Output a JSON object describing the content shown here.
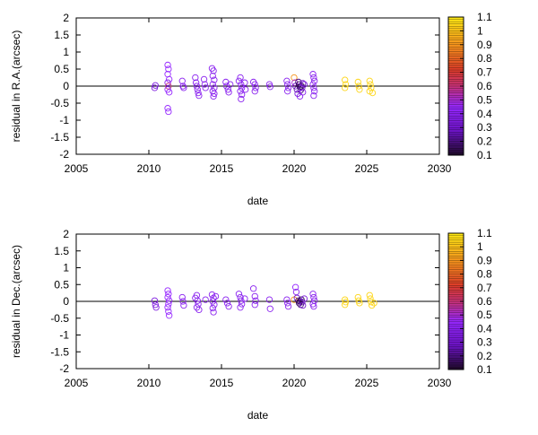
{
  "chart_data": [
    {
      "type": "scatter",
      "title": "",
      "xlabel": "date",
      "ylabel": "residual in R.A.(arcsec)",
      "xlim": [
        2005,
        2030
      ],
      "ylim": [
        -2,
        2
      ],
      "xticks": [
        "2005",
        "2010",
        "2015",
        "2020",
        "2025",
        "2030"
      ],
      "yticks": [
        "-2",
        "-1.5",
        "-1",
        "-0.5",
        "0",
        "0.5",
        "1",
        "1.5",
        "2"
      ],
      "zero_line": true,
      "grid": false,
      "marker": "open-circle",
      "colorbar": {
        "range": [
          0.1,
          1.1
        ],
        "ticks": [
          "0.1",
          "0.2",
          "0.3",
          "0.4",
          "0.5",
          "0.6",
          "0.7",
          "0.8",
          "0.9",
          "1",
          "1.1"
        ],
        "colormap": "black-purple-red-orange-yellow"
      },
      "points": [
        {
          "x": 2010.4,
          "y": -0.05,
          "c": 0.35
        },
        {
          "x": 2010.45,
          "y": 0.02,
          "c": 0.35
        },
        {
          "x": 2011.3,
          "y": 0.62,
          "c": 0.45
        },
        {
          "x": 2011.35,
          "y": 0.5,
          "c": 0.45
        },
        {
          "x": 2011.3,
          "y": 0.35,
          "c": 0.45
        },
        {
          "x": 2011.4,
          "y": 0.2,
          "c": 0.45
        },
        {
          "x": 2011.3,
          "y": 0.1,
          "c": 0.4
        },
        {
          "x": 2011.35,
          "y": 0.0,
          "c": 0.6
        },
        {
          "x": 2011.3,
          "y": -0.1,
          "c": 0.45
        },
        {
          "x": 2011.4,
          "y": -0.18,
          "c": 0.45
        },
        {
          "x": 2011.3,
          "y": -0.65,
          "c": 0.45
        },
        {
          "x": 2011.35,
          "y": -0.75,
          "c": 0.45
        },
        {
          "x": 2012.3,
          "y": 0.15,
          "c": 0.4
        },
        {
          "x": 2012.35,
          "y": 0.0,
          "c": 0.4
        },
        {
          "x": 2012.4,
          "y": -0.05,
          "c": 0.4
        },
        {
          "x": 2013.2,
          "y": 0.25,
          "c": 0.4
        },
        {
          "x": 2013.25,
          "y": 0.1,
          "c": 0.4
        },
        {
          "x": 2013.3,
          "y": 0.0,
          "c": 0.4
        },
        {
          "x": 2013.35,
          "y": -0.1,
          "c": 0.4
        },
        {
          "x": 2013.4,
          "y": -0.2,
          "c": 0.4
        },
        {
          "x": 2013.45,
          "y": -0.28,
          "c": 0.4
        },
        {
          "x": 2013.8,
          "y": 0.2,
          "c": 0.4
        },
        {
          "x": 2013.85,
          "y": 0.05,
          "c": 0.4
        },
        {
          "x": 2013.9,
          "y": -0.05,
          "c": 0.4
        },
        {
          "x": 2014.35,
          "y": 0.52,
          "c": 0.4
        },
        {
          "x": 2014.45,
          "y": 0.45,
          "c": 0.4
        },
        {
          "x": 2014.4,
          "y": 0.3,
          "c": 0.4
        },
        {
          "x": 2014.5,
          "y": 0.18,
          "c": 0.4
        },
        {
          "x": 2014.4,
          "y": 0.05,
          "c": 0.4
        },
        {
          "x": 2014.5,
          "y": -0.05,
          "c": 0.4
        },
        {
          "x": 2014.4,
          "y": -0.15,
          "c": 0.4
        },
        {
          "x": 2014.5,
          "y": -0.22,
          "c": 0.4
        },
        {
          "x": 2014.45,
          "y": -0.3,
          "c": 0.4
        },
        {
          "x": 2015.3,
          "y": 0.12,
          "c": 0.4
        },
        {
          "x": 2015.35,
          "y": 0.0,
          "c": 0.4
        },
        {
          "x": 2015.45,
          "y": -0.1,
          "c": 0.4
        },
        {
          "x": 2015.5,
          "y": -0.18,
          "c": 0.4
        },
        {
          "x": 2015.6,
          "y": 0.05,
          "c": 0.4
        },
        {
          "x": 2016.2,
          "y": 0.15,
          "c": 0.4
        },
        {
          "x": 2016.3,
          "y": 0.25,
          "c": 0.4
        },
        {
          "x": 2016.35,
          "y": 0.05,
          "c": 0.4
        },
        {
          "x": 2016.4,
          "y": -0.05,
          "c": 0.4
        },
        {
          "x": 2016.3,
          "y": -0.15,
          "c": 0.4
        },
        {
          "x": 2016.4,
          "y": -0.25,
          "c": 0.4
        },
        {
          "x": 2016.35,
          "y": -0.38,
          "c": 0.4
        },
        {
          "x": 2016.6,
          "y": 0.1,
          "c": 0.4
        },
        {
          "x": 2016.65,
          "y": -0.1,
          "c": 0.4
        },
        {
          "x": 2017.2,
          "y": 0.12,
          "c": 0.4
        },
        {
          "x": 2017.3,
          "y": 0.05,
          "c": 0.4
        },
        {
          "x": 2017.35,
          "y": -0.05,
          "c": 0.4
        },
        {
          "x": 2017.3,
          "y": -0.15,
          "c": 0.4
        },
        {
          "x": 2018.3,
          "y": 0.05,
          "c": 0.4
        },
        {
          "x": 2018.35,
          "y": -0.02,
          "c": 0.4
        },
        {
          "x": 2019.5,
          "y": 0.15,
          "c": 0.4
        },
        {
          "x": 2019.55,
          "y": 0.05,
          "c": 0.4
        },
        {
          "x": 2019.6,
          "y": -0.05,
          "c": 0.4
        },
        {
          "x": 2019.55,
          "y": -0.15,
          "c": 0.4
        },
        {
          "x": 2020.0,
          "y": 0.25,
          "c": 0.9
        },
        {
          "x": 2020.05,
          "y": 0.1,
          "c": 0.5
        },
        {
          "x": 2020.1,
          "y": 0.0,
          "c": 0.3
        },
        {
          "x": 2020.2,
          "y": -0.1,
          "c": 0.25
        },
        {
          "x": 2020.3,
          "y": 0.12,
          "c": 0.2
        },
        {
          "x": 2020.35,
          "y": 0.05,
          "c": 0.15
        },
        {
          "x": 2020.4,
          "y": -0.02,
          "c": 0.15
        },
        {
          "x": 2020.45,
          "y": -0.12,
          "c": 0.2
        },
        {
          "x": 2020.5,
          "y": 0.0,
          "c": 0.15
        },
        {
          "x": 2020.55,
          "y": -0.05,
          "c": 0.25
        },
        {
          "x": 2020.6,
          "y": 0.08,
          "c": 0.3
        },
        {
          "x": 2020.25,
          "y": -0.22,
          "c": 0.35
        },
        {
          "x": 2020.4,
          "y": -0.3,
          "c": 0.4
        },
        {
          "x": 2020.6,
          "y": -0.18,
          "c": 0.4
        },
        {
          "x": 2020.7,
          "y": 0.05,
          "c": 0.35
        },
        {
          "x": 2021.3,
          "y": 0.35,
          "c": 0.4
        },
        {
          "x": 2021.35,
          "y": 0.25,
          "c": 0.4
        },
        {
          "x": 2021.4,
          "y": 0.15,
          "c": 0.4
        },
        {
          "x": 2021.3,
          "y": 0.05,
          "c": 0.4
        },
        {
          "x": 2021.35,
          "y": -0.05,
          "c": 0.4
        },
        {
          "x": 2021.4,
          "y": -0.15,
          "c": 0.4
        },
        {
          "x": 2021.35,
          "y": -0.28,
          "c": 0.4
        },
        {
          "x": 2023.5,
          "y": 0.18,
          "c": 1.05
        },
        {
          "x": 2023.55,
          "y": 0.05,
          "c": 1.05
        },
        {
          "x": 2023.5,
          "y": -0.05,
          "c": 1.05
        },
        {
          "x": 2024.4,
          "y": 0.12,
          "c": 1.05
        },
        {
          "x": 2024.45,
          "y": 0.0,
          "c": 1.05
        },
        {
          "x": 2024.5,
          "y": -0.1,
          "c": 1.05
        },
        {
          "x": 2025.2,
          "y": 0.15,
          "c": 1.05
        },
        {
          "x": 2025.25,
          "y": 0.05,
          "c": 1.05
        },
        {
          "x": 2025.3,
          "y": -0.05,
          "c": 1.05
        },
        {
          "x": 2025.2,
          "y": -0.15,
          "c": 1.05
        },
        {
          "x": 2025.4,
          "y": -0.2,
          "c": 1.05
        }
      ]
    },
    {
      "type": "scatter",
      "title": "",
      "xlabel": "date",
      "ylabel": "residual in Dec.(arcsec)",
      "xlim": [
        2005,
        2030
      ],
      "ylim": [
        -2,
        2
      ],
      "xticks": [
        "2005",
        "2010",
        "2015",
        "2020",
        "2025",
        "2030"
      ],
      "yticks": [
        "-2",
        "-1.5",
        "-1",
        "-0.5",
        "0",
        "0.5",
        "1",
        "1.5",
        "2"
      ],
      "zero_line": true,
      "grid": false,
      "marker": "open-circle",
      "colorbar": {
        "range": [
          0.1,
          1.1
        ],
        "ticks": [
          "0.1",
          "0.2",
          "0.3",
          "0.4",
          "0.5",
          "0.6",
          "0.7",
          "0.8",
          "0.9",
          "1",
          "1.1"
        ],
        "colormap": "black-purple-red-orange-yellow"
      },
      "points": [
        {
          "x": 2010.4,
          "y": 0.02,
          "c": 0.35
        },
        {
          "x": 2010.45,
          "y": -0.1,
          "c": 0.35
        },
        {
          "x": 2010.5,
          "y": -0.18,
          "c": 0.35
        },
        {
          "x": 2011.3,
          "y": 0.32,
          "c": 0.45
        },
        {
          "x": 2011.35,
          "y": 0.22,
          "c": 0.45
        },
        {
          "x": 2011.3,
          "y": 0.12,
          "c": 0.45
        },
        {
          "x": 2011.4,
          "y": 0.02,
          "c": 0.45
        },
        {
          "x": 2011.35,
          "y": -0.08,
          "c": 0.45
        },
        {
          "x": 2011.3,
          "y": -0.18,
          "c": 0.45
        },
        {
          "x": 2011.35,
          "y": -0.3,
          "c": 0.45
        },
        {
          "x": 2011.4,
          "y": -0.42,
          "c": 0.45
        },
        {
          "x": 2012.3,
          "y": 0.12,
          "c": 0.4
        },
        {
          "x": 2012.35,
          "y": 0.0,
          "c": 0.4
        },
        {
          "x": 2012.4,
          "y": -0.12,
          "c": 0.4
        },
        {
          "x": 2013.2,
          "y": 0.1,
          "c": 0.4
        },
        {
          "x": 2013.3,
          "y": 0.18,
          "c": 0.4
        },
        {
          "x": 2013.35,
          "y": 0.02,
          "c": 0.4
        },
        {
          "x": 2013.4,
          "y": -0.08,
          "c": 0.4
        },
        {
          "x": 2013.3,
          "y": -0.18,
          "c": 0.4
        },
        {
          "x": 2013.45,
          "y": -0.25,
          "c": 0.4
        },
        {
          "x": 2013.9,
          "y": 0.05,
          "c": 0.4
        },
        {
          "x": 2014.35,
          "y": 0.2,
          "c": 0.4
        },
        {
          "x": 2014.45,
          "y": 0.1,
          "c": 0.4
        },
        {
          "x": 2014.4,
          "y": 0.0,
          "c": 0.4
        },
        {
          "x": 2014.5,
          "y": -0.1,
          "c": 0.4
        },
        {
          "x": 2014.4,
          "y": -0.2,
          "c": 0.4
        },
        {
          "x": 2014.45,
          "y": -0.32,
          "c": 0.4
        },
        {
          "x": 2014.6,
          "y": 0.15,
          "c": 0.4
        },
        {
          "x": 2015.3,
          "y": 0.05,
          "c": 0.4
        },
        {
          "x": 2015.4,
          "y": -0.05,
          "c": 0.4
        },
        {
          "x": 2015.5,
          "y": -0.15,
          "c": 0.4
        },
        {
          "x": 2016.2,
          "y": 0.22,
          "c": 0.4
        },
        {
          "x": 2016.3,
          "y": 0.12,
          "c": 0.4
        },
        {
          "x": 2016.35,
          "y": 0.02,
          "c": 0.4
        },
        {
          "x": 2016.4,
          "y": -0.08,
          "c": 0.4
        },
        {
          "x": 2016.3,
          "y": -0.18,
          "c": 0.4
        },
        {
          "x": 2016.6,
          "y": 0.08,
          "c": 0.4
        },
        {
          "x": 2017.2,
          "y": 0.38,
          "c": 0.4
        },
        {
          "x": 2017.3,
          "y": 0.15,
          "c": 0.4
        },
        {
          "x": 2017.35,
          "y": 0.02,
          "c": 0.4
        },
        {
          "x": 2017.3,
          "y": -0.1,
          "c": 0.4
        },
        {
          "x": 2018.3,
          "y": 0.05,
          "c": 0.4
        },
        {
          "x": 2018.35,
          "y": -0.22,
          "c": 0.4
        },
        {
          "x": 2019.5,
          "y": 0.05,
          "c": 0.4
        },
        {
          "x": 2019.55,
          "y": -0.05,
          "c": 0.4
        },
        {
          "x": 2019.6,
          "y": -0.15,
          "c": 0.4
        },
        {
          "x": 2020.0,
          "y": 0.05,
          "c": 0.9
        },
        {
          "x": 2020.1,
          "y": 0.42,
          "c": 0.45
        },
        {
          "x": 2020.15,
          "y": 0.28,
          "c": 0.4
        },
        {
          "x": 2020.2,
          "y": 0.1,
          "c": 0.3
        },
        {
          "x": 2020.3,
          "y": 0.02,
          "c": 0.2
        },
        {
          "x": 2020.35,
          "y": -0.05,
          "c": 0.15
        },
        {
          "x": 2020.4,
          "y": 0.0,
          "c": 0.15
        },
        {
          "x": 2020.45,
          "y": -0.1,
          "c": 0.2
        },
        {
          "x": 2020.5,
          "y": 0.05,
          "c": 0.15
        },
        {
          "x": 2020.55,
          "y": -0.02,
          "c": 0.25
        },
        {
          "x": 2020.6,
          "y": -0.12,
          "c": 0.3
        },
        {
          "x": 2020.7,
          "y": 0.08,
          "c": 0.35
        },
        {
          "x": 2021.3,
          "y": 0.22,
          "c": 0.4
        },
        {
          "x": 2021.35,
          "y": 0.12,
          "c": 0.4
        },
        {
          "x": 2021.4,
          "y": 0.02,
          "c": 0.4
        },
        {
          "x": 2021.3,
          "y": -0.08,
          "c": 0.4
        },
        {
          "x": 2021.35,
          "y": -0.15,
          "c": 0.4
        },
        {
          "x": 2023.5,
          "y": 0.05,
          "c": 1.05
        },
        {
          "x": 2023.55,
          "y": -0.02,
          "c": 1.05
        },
        {
          "x": 2023.5,
          "y": -0.1,
          "c": 1.05
        },
        {
          "x": 2024.4,
          "y": 0.12,
          "c": 1.05
        },
        {
          "x": 2024.45,
          "y": 0.02,
          "c": 1.05
        },
        {
          "x": 2024.5,
          "y": -0.05,
          "c": 1.05
        },
        {
          "x": 2025.2,
          "y": 0.18,
          "c": 1.05
        },
        {
          "x": 2025.25,
          "y": 0.08,
          "c": 1.05
        },
        {
          "x": 2025.3,
          "y": -0.02,
          "c": 1.05
        },
        {
          "x": 2025.35,
          "y": -0.12,
          "c": 1.05
        },
        {
          "x": 2025.5,
          "y": -0.05,
          "c": 1.05
        }
      ]
    }
  ]
}
